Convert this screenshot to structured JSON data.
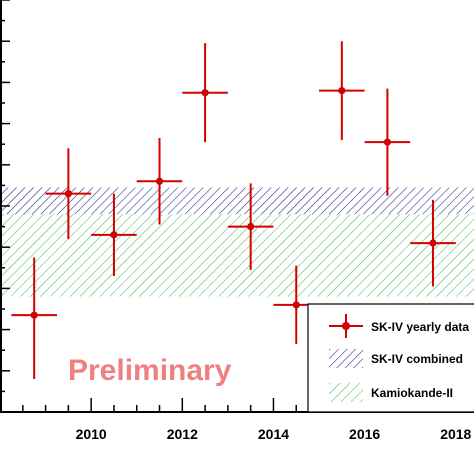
{
  "chart_data": {
    "type": "scatter",
    "xlim": [
      2008,
      2018.4
    ],
    "ylim": [
      0,
      10
    ],
    "x_ticks": [
      "2010",
      "2012",
      "2014",
      "2016",
      "2018"
    ],
    "grid": false,
    "annotation": "Preliminary",
    "legend_placement": "bottom-right",
    "series": [
      {
        "name": "SK-IV yearly data",
        "color": "#d40000",
        "points": [
          {
            "x": 2008.75,
            "y": 2.35,
            "xerr": 0.5,
            "yerr_low": 1.55,
            "yerr_high": 1.4
          },
          {
            "x": 2009.5,
            "y": 5.3,
            "xerr": 0.5,
            "yerr_low": 1.1,
            "yerr_high": 1.1
          },
          {
            "x": 2010.5,
            "y": 4.3,
            "xerr": 0.5,
            "yerr_low": 1.0,
            "yerr_high": 1.0
          },
          {
            "x": 2011.5,
            "y": 5.6,
            "xerr": 0.5,
            "yerr_low": 1.05,
            "yerr_high": 1.05
          },
          {
            "x": 2012.5,
            "y": 7.75,
            "xerr": 0.5,
            "yerr_low": 1.2,
            "yerr_high": 1.2
          },
          {
            "x": 2013.5,
            "y": 4.5,
            "xerr": 0.5,
            "yerr_low": 1.05,
            "yerr_high": 1.05
          },
          {
            "x": 2014.5,
            "y": 2.6,
            "xerr": 0.5,
            "yerr_low": 0.95,
            "yerr_high": 0.95
          },
          {
            "x": 2015.5,
            "y": 7.8,
            "xerr": 0.5,
            "yerr_low": 1.2,
            "yerr_high": 1.2
          },
          {
            "x": 2016.5,
            "y": 6.55,
            "xerr": 0.5,
            "yerr_low": 1.3,
            "yerr_high": 1.3
          },
          {
            "x": 2017.5,
            "y": 4.1,
            "xerr": 0.5,
            "yerr_low": 1.05,
            "yerr_high": 1.05
          }
        ]
      },
      {
        "name": "SK-IV combined",
        "type": "band",
        "color": "#1a237e",
        "y_low": 4.8,
        "y_high": 5.45
      },
      {
        "name": "Kamiokande-II",
        "type": "band",
        "color": "#3cb44b",
        "y_low": 2.8,
        "y_high": 4.8
      }
    ]
  }
}
